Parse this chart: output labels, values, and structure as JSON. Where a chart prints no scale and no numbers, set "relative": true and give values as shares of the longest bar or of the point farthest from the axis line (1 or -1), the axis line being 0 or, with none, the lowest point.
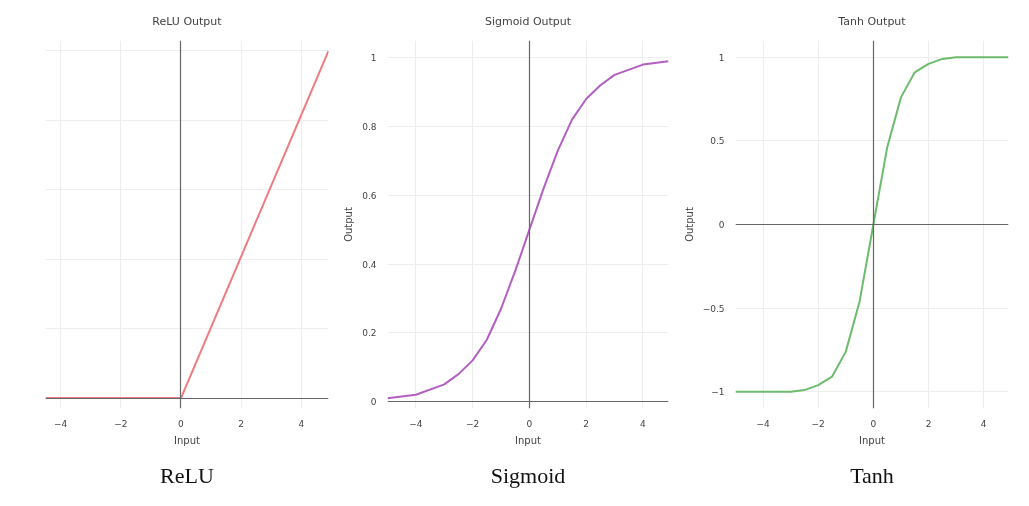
{
  "chart_data": [
    {
      "type": "line",
      "title": "ReLU Output",
      "xlabel": "Input",
      "relative": true,
      "tick_labels": "x",
      "grid": true,
      "xlim": [
        -4.5,
        4.9
      ],
      "xticks": [
        -4,
        -2,
        0,
        2,
        4
      ],
      "series": [
        {
          "color": "#ef7a80",
          "x": [
            -4.5,
            0,
            4.9
          ],
          "values": [
            0,
            0,
            1
          ]
        }
      ],
      "annotations": [
        "ReLU"
      ]
    },
    {
      "type": "line",
      "title": "Sigmoid Output",
      "xlabel": "Input",
      "ylabel": "Output",
      "grid": true,
      "xlim": [
        -5,
        4.9
      ],
      "ylim": [
        -0.02,
        1.05
      ],
      "xticks": [
        -4,
        -2,
        0,
        2,
        4
      ],
      "yticks": [
        0,
        0.2,
        0.4,
        0.6,
        0.8,
        1
      ],
      "series": [
        {
          "color": "#b35fc2",
          "x": [
            -5,
            -4,
            -3,
            -2.5,
            -2,
            -1.5,
            -1,
            -0.5,
            0,
            0.5,
            1,
            1.5,
            2,
            2.5,
            3,
            4,
            4.9
          ],
          "values": [
            0.01,
            0.02,
            0.05,
            0.08,
            0.12,
            0.18,
            0.27,
            0.38,
            0.5,
            0.62,
            0.73,
            0.82,
            0.88,
            0.92,
            0.95,
            0.98,
            0.99
          ]
        }
      ],
      "annotations": [
        "Sigmoid"
      ]
    },
    {
      "type": "line",
      "title": "Tanh Output",
      "xlabel": "Input",
      "ylabel": "Output",
      "grid": true,
      "xlim": [
        -5,
        4.9
      ],
      "ylim": [
        -1.1,
        1.1
      ],
      "xticks": [
        -4,
        -2,
        0,
        2,
        4
      ],
      "yticks": [
        -1,
        -0.5,
        0,
        0.5,
        1
      ],
      "series": [
        {
          "color": "#6dbb6d",
          "x": [
            -5,
            -3,
            -2.5,
            -2,
            -1.5,
            -1,
            -0.5,
            0,
            0.5,
            1,
            1.5,
            2,
            2.5,
            3,
            4.9
          ],
          "values": [
            -1,
            -1,
            -0.99,
            -0.96,
            -0.91,
            -0.76,
            -0.46,
            0,
            0.46,
            0.76,
            0.91,
            0.96,
            0.99,
            1,
            1
          ]
        }
      ],
      "annotations": [
        "Tanh"
      ]
    }
  ]
}
